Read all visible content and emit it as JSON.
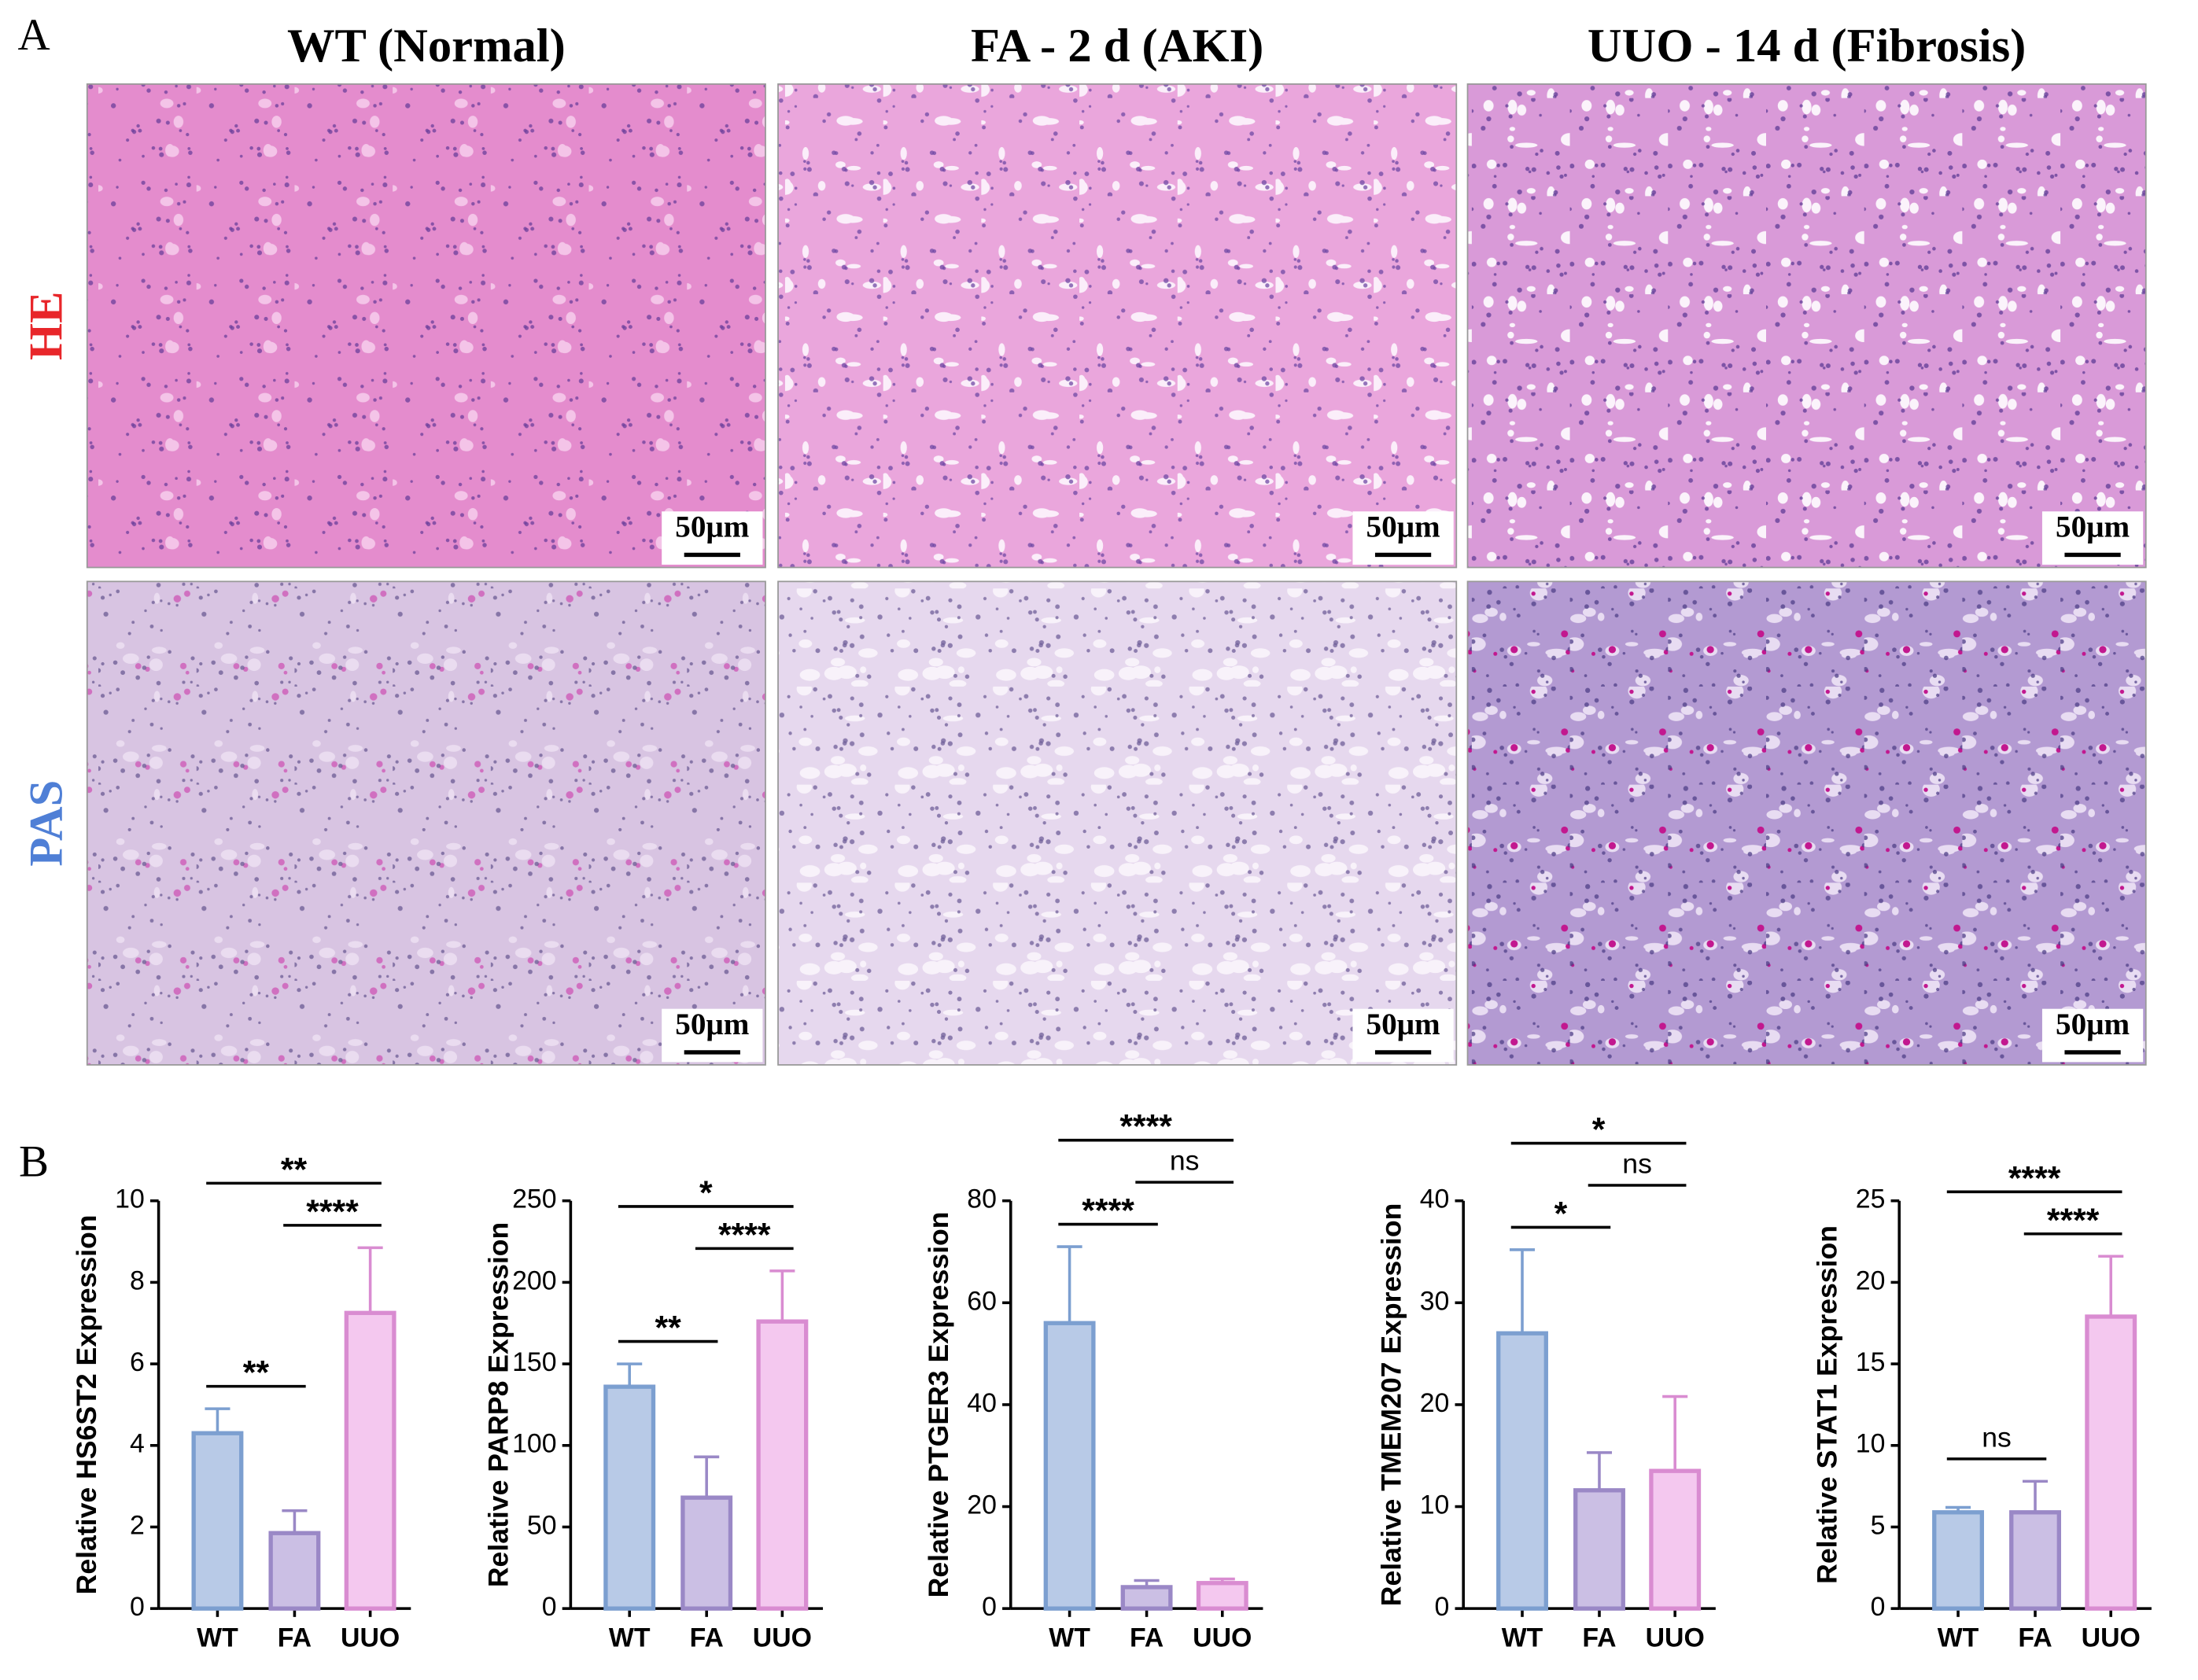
{
  "panel_a": {
    "label": "A",
    "columns": [
      "WT (Normal)",
      "FA - 2 d (AKI)",
      "UUO - 14 d (Fibrosis)"
    ],
    "rows": [
      "HE",
      "PAS"
    ],
    "row_colors": [
      "#e8262a",
      "#4f7fd6"
    ],
    "scale_bars": [
      [
        "50μm",
        "50μm",
        "50μm"
      ],
      [
        "50μm",
        "50μm",
        "50μm"
      ]
    ]
  },
  "panel_b": {
    "label": "B"
  },
  "chart_data": [
    {
      "type": "bar",
      "ylabel": "Relative HS6ST2 Expression",
      "categories": [
        "WT",
        "FA",
        "UUO"
      ],
      "values": [
        4.3,
        1.85,
        7.25
      ],
      "errors": [
        0.6,
        0.55,
        1.6
      ],
      "colors": [
        "#b8cae7",
        "#cbbfe4",
        "#f4c8ef"
      ],
      "edge_colors": [
        "#7c9fd0",
        "#9a88c6",
        "#d98cd1"
      ],
      "ylim": [
        0,
        10
      ],
      "yticks": [
        0,
        2,
        4,
        6,
        8,
        10
      ],
      "comparisons": [
        {
          "groups": [
            "WT",
            "FA"
          ],
          "label": "**"
        },
        {
          "groups": [
            "FA",
            "UUO"
          ],
          "label": "****"
        },
        {
          "groups": [
            "WT",
            "UUO"
          ],
          "label": "**"
        }
      ]
    },
    {
      "type": "bar",
      "ylabel": "Relative PARP8 Expression",
      "categories": [
        "WT",
        "FA",
        "UUO"
      ],
      "values": [
        136,
        68,
        176
      ],
      "errors": [
        14,
        25,
        31
      ],
      "colors": [
        "#b8cae7",
        "#cbbfe4",
        "#f4c8ef"
      ],
      "edge_colors": [
        "#7c9fd0",
        "#9a88c6",
        "#d98cd1"
      ],
      "ylim": [
        0,
        250
      ],
      "yticks": [
        0,
        50,
        100,
        150,
        200,
        250
      ],
      "comparisons": [
        {
          "groups": [
            "WT",
            "FA"
          ],
          "label": "**"
        },
        {
          "groups": [
            "FA",
            "UUO"
          ],
          "label": "****"
        },
        {
          "groups": [
            "WT",
            "UUO"
          ],
          "label": "*"
        }
      ]
    },
    {
      "type": "bar",
      "ylabel": "Relative PTGER3 Expression",
      "categories": [
        "WT",
        "FA",
        "UUO"
      ],
      "values": [
        56,
        4.2,
        5
      ],
      "errors": [
        15,
        1.3,
        0.8
      ],
      "colors": [
        "#b8cae7",
        "#cbbfe4",
        "#f4c8ef"
      ],
      "edge_colors": [
        "#7c9fd0",
        "#9a88c6",
        "#d98cd1"
      ],
      "ylim": [
        0,
        80
      ],
      "yticks": [
        0,
        20,
        40,
        60,
        80
      ],
      "comparisons": [
        {
          "groups": [
            "WT",
            "FA"
          ],
          "label": "****"
        },
        {
          "groups": [
            "FA",
            "UUO"
          ],
          "label": "ns"
        },
        {
          "groups": [
            "WT",
            "UUO"
          ],
          "label": "****"
        }
      ]
    },
    {
      "type": "bar",
      "ylabel": "Relative TMEM207 Expression",
      "categories": [
        "WT",
        "FA",
        "UUO"
      ],
      "values": [
        27,
        11.6,
        13.5
      ],
      "errors": [
        8.2,
        3.7,
        7.3
      ],
      "colors": [
        "#b8cae7",
        "#cbbfe4",
        "#f4c8ef"
      ],
      "edge_colors": [
        "#7c9fd0",
        "#9a88c6",
        "#d98cd1"
      ],
      "ylim": [
        0,
        40
      ],
      "yticks": [
        0,
        10,
        20,
        30,
        40
      ],
      "comparisons": [
        {
          "groups": [
            "WT",
            "FA"
          ],
          "label": "*"
        },
        {
          "groups": [
            "FA",
            "UUO"
          ],
          "label": "ns"
        },
        {
          "groups": [
            "WT",
            "UUO"
          ],
          "label": "*"
        }
      ]
    },
    {
      "type": "bar",
      "ylabel": "Relative STAT1 Expression",
      "categories": [
        "WT",
        "FA",
        "UUO"
      ],
      "values": [
        5.9,
        5.9,
        17.9
      ],
      "errors": [
        0.3,
        1.9,
        3.7
      ],
      "colors": [
        "#b8cae7",
        "#cbbfe4",
        "#f4c8ef"
      ],
      "edge_colors": [
        "#7c9fd0",
        "#9a88c6",
        "#d98cd1"
      ],
      "ylim": [
        0,
        25
      ],
      "yticks": [
        0,
        5,
        10,
        15,
        20,
        25
      ],
      "comparisons": [
        {
          "groups": [
            "WT",
            "FA"
          ],
          "label": "ns"
        },
        {
          "groups": [
            "FA",
            "UUO"
          ],
          "label": "****"
        },
        {
          "groups": [
            "WT",
            "UUO"
          ],
          "label": "****"
        }
      ]
    }
  ]
}
